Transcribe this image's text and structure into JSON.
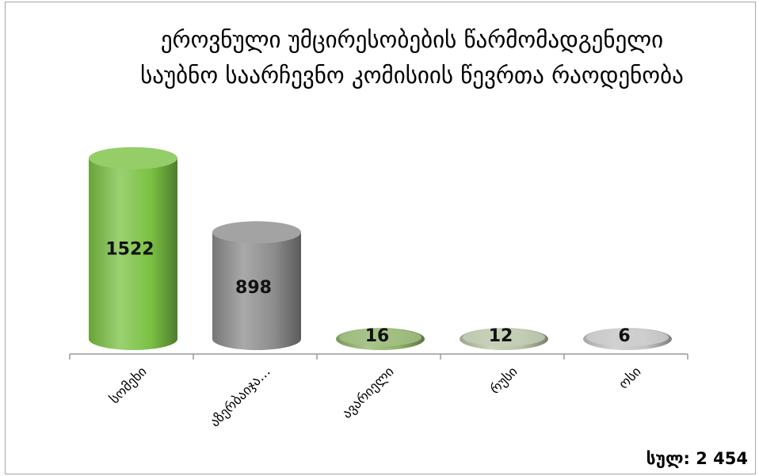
{
  "chart_data": {
    "type": "bar",
    "style": "3d-cylinder",
    "title_lines": [
      "ეროვნული უმცირესობების წარმომადგენელი",
      "საუბნო საარჩევნო კომისიის წევრთა რაოდენობა"
    ],
    "categories": [
      "სომეხი",
      "აზერბაიჯა…",
      "ავარიელი",
      "რუსი",
      "ოსი"
    ],
    "values": [
      1522,
      898,
      16,
      12,
      6
    ],
    "data_labels": [
      "1522",
      "898",
      "16",
      "12",
      "6"
    ],
    "colors": [
      "#7ac143",
      "#8c8c8c",
      "#8fb369",
      "#b8c4a6",
      "#c4c4c4"
    ],
    "ylim": [
      0,
      1600
    ],
    "grid": false,
    "legend": "none"
  },
  "total_label": "სულ: 2 454"
}
